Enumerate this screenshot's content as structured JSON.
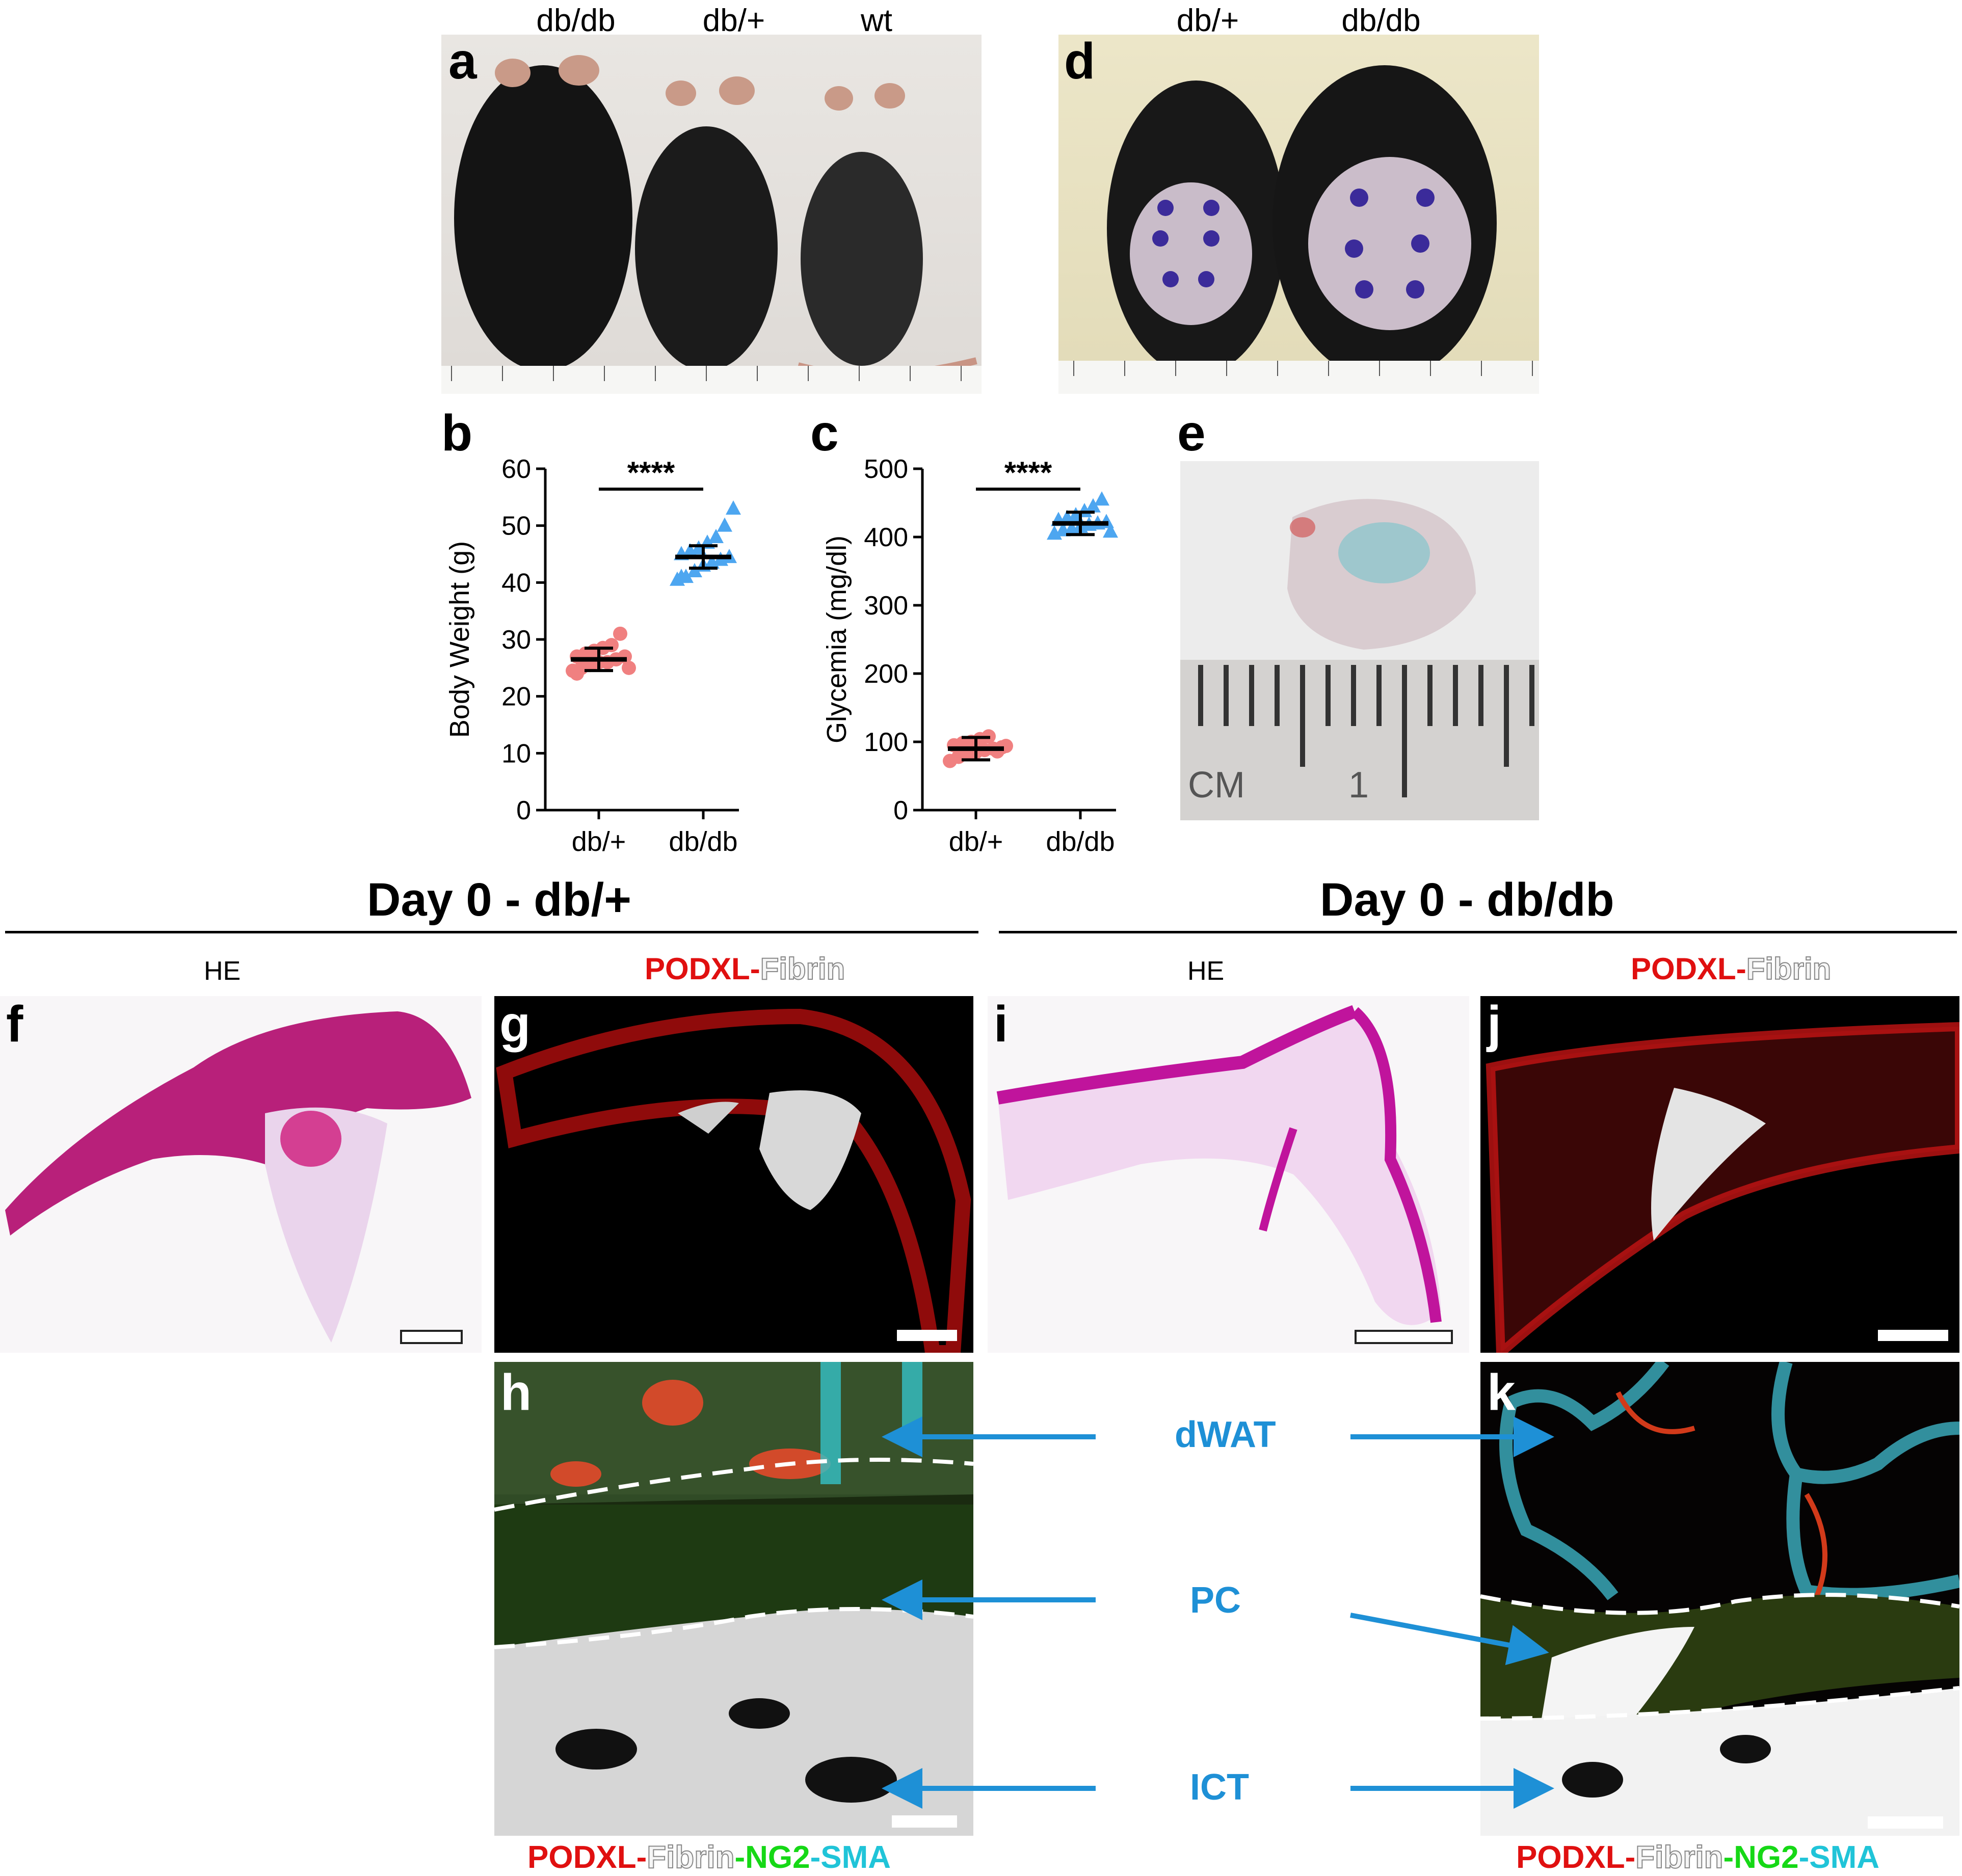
{
  "panels": {
    "a": {
      "letter": "a",
      "labels": [
        "db/db",
        "db/+",
        "wt"
      ]
    },
    "d": {
      "letter": "d",
      "labels": [
        "db/+",
        "db/db"
      ]
    },
    "b": {
      "letter": "b"
    },
    "c": {
      "letter": "c"
    },
    "e": {
      "letter": "e",
      "ruler_unit": "CM",
      "ruler_mark": "1"
    },
    "f": {
      "letter": "f",
      "stain": "HE"
    },
    "g": {
      "letter": "g",
      "stain_parts": [
        "PODXL",
        "-",
        "Fibrin"
      ]
    },
    "h": {
      "letter": "h",
      "stain_parts": [
        "PODXL",
        "-",
        "Fibrin",
        "-",
        "NG2",
        "-",
        "SMA"
      ]
    },
    "i": {
      "letter": "i",
      "stain": "HE"
    },
    "j": {
      "letter": "j",
      "stain_parts": [
        "PODXL",
        "-",
        "Fibrin"
      ]
    },
    "k": {
      "letter": "k",
      "stain_parts": [
        "PODXL",
        "-",
        "Fibrin",
        "-",
        "NG2",
        "-",
        "SMA"
      ]
    }
  },
  "section_titles": {
    "left": "Day 0 - db/+",
    "right": "Day 0 - db/db"
  },
  "middle_labels": [
    "dWAT",
    "PC",
    "ICT"
  ],
  "chart_data": [
    {
      "type": "scatter",
      "panel": "b",
      "ylabel": "Body Weight (g)",
      "categories": [
        "db/+",
        "db/db"
      ],
      "ylim": [
        0,
        60
      ],
      "yticks": [
        0,
        10,
        20,
        30,
        40,
        50,
        60
      ],
      "significance": "****",
      "series": [
        {
          "category": "db/+",
          "marker": "circle",
          "color": "#f08080",
          "mean": 26.5,
          "values": [
            24.5,
            25,
            25.5,
            26,
            26,
            26.5,
            27,
            27,
            27.5,
            28,
            28.5,
            29,
            31,
            25,
            24
          ]
        },
        {
          "category": "db/db",
          "marker": "triangle",
          "color": "#4da6f0",
          "mean": 44.5,
          "values": [
            40.5,
            41,
            42,
            43,
            43.5,
            44,
            44.5,
            45,
            45.5,
            46,
            47,
            48,
            50,
            53,
            41
          ]
        }
      ]
    },
    {
      "type": "scatter",
      "panel": "c",
      "ylabel": "Glycemia (mg/dl)",
      "categories": [
        "db/+",
        "db/db"
      ],
      "ylim": [
        0,
        500
      ],
      "yticks": [
        0,
        100,
        200,
        300,
        400,
        500
      ],
      "significance": "****",
      "series": [
        {
          "category": "db/+",
          "marker": "circle",
          "color": "#f08080",
          "mean": 90,
          "values": [
            72,
            78,
            82,
            85,
            88,
            90,
            92,
            95,
            98,
            100,
            104,
            108,
            86,
            94
          ]
        },
        {
          "category": "db/db",
          "marker": "triangle",
          "color": "#4da6f0",
          "mean": 420,
          "values": [
            405,
            410,
            412,
            415,
            418,
            420,
            422,
            425,
            428,
            432,
            438,
            445,
            455,
            408
          ]
        }
      ]
    }
  ],
  "colors": {
    "marker_blue": "#1e90d6",
    "podxl": "#e01010",
    "ng2": "#16d816",
    "sma": "#20c4d8"
  }
}
